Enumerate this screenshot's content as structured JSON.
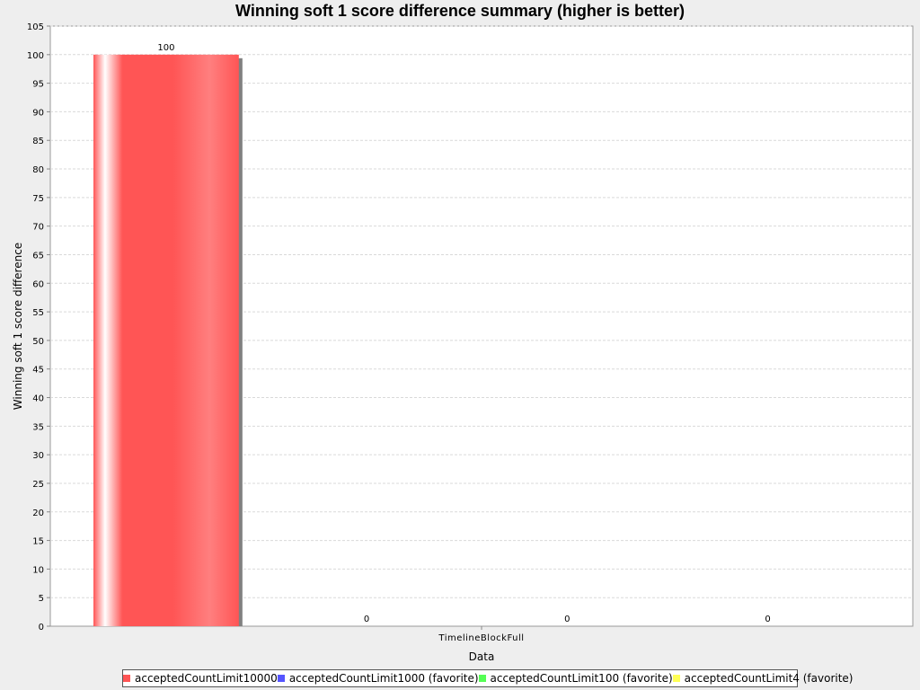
{
  "chart_data": {
    "type": "bar",
    "title": "Winning soft 1 score difference summary (higher is better)",
    "xlabel": "Data",
    "ylabel": "Winning soft 1 score difference",
    "categories": [
      "TimelineBlockFull"
    ],
    "ylim": [
      0,
      105
    ],
    "yticks": [
      0,
      5,
      10,
      15,
      20,
      25,
      30,
      35,
      40,
      45,
      50,
      55,
      60,
      65,
      70,
      75,
      80,
      85,
      90,
      95,
      100,
      105
    ],
    "grid": true,
    "legend_position": "bottom",
    "series": [
      {
        "name": "acceptedCountLimit10000",
        "color": "#ff5555",
        "values": [
          100
        ],
        "label": "100"
      },
      {
        "name": "acceptedCountLimit1000 (favorite)",
        "color": "#5555ff",
        "values": [
          0
        ],
        "label": "0"
      },
      {
        "name": "acceptedCountLimit100 (favorite)",
        "color": "#55ff55",
        "values": [
          0
        ],
        "label": "0"
      },
      {
        "name": "acceptedCountLimit4 (favorite)",
        "color": "#ffff55",
        "values": [
          0
        ],
        "label": "0"
      }
    ]
  }
}
